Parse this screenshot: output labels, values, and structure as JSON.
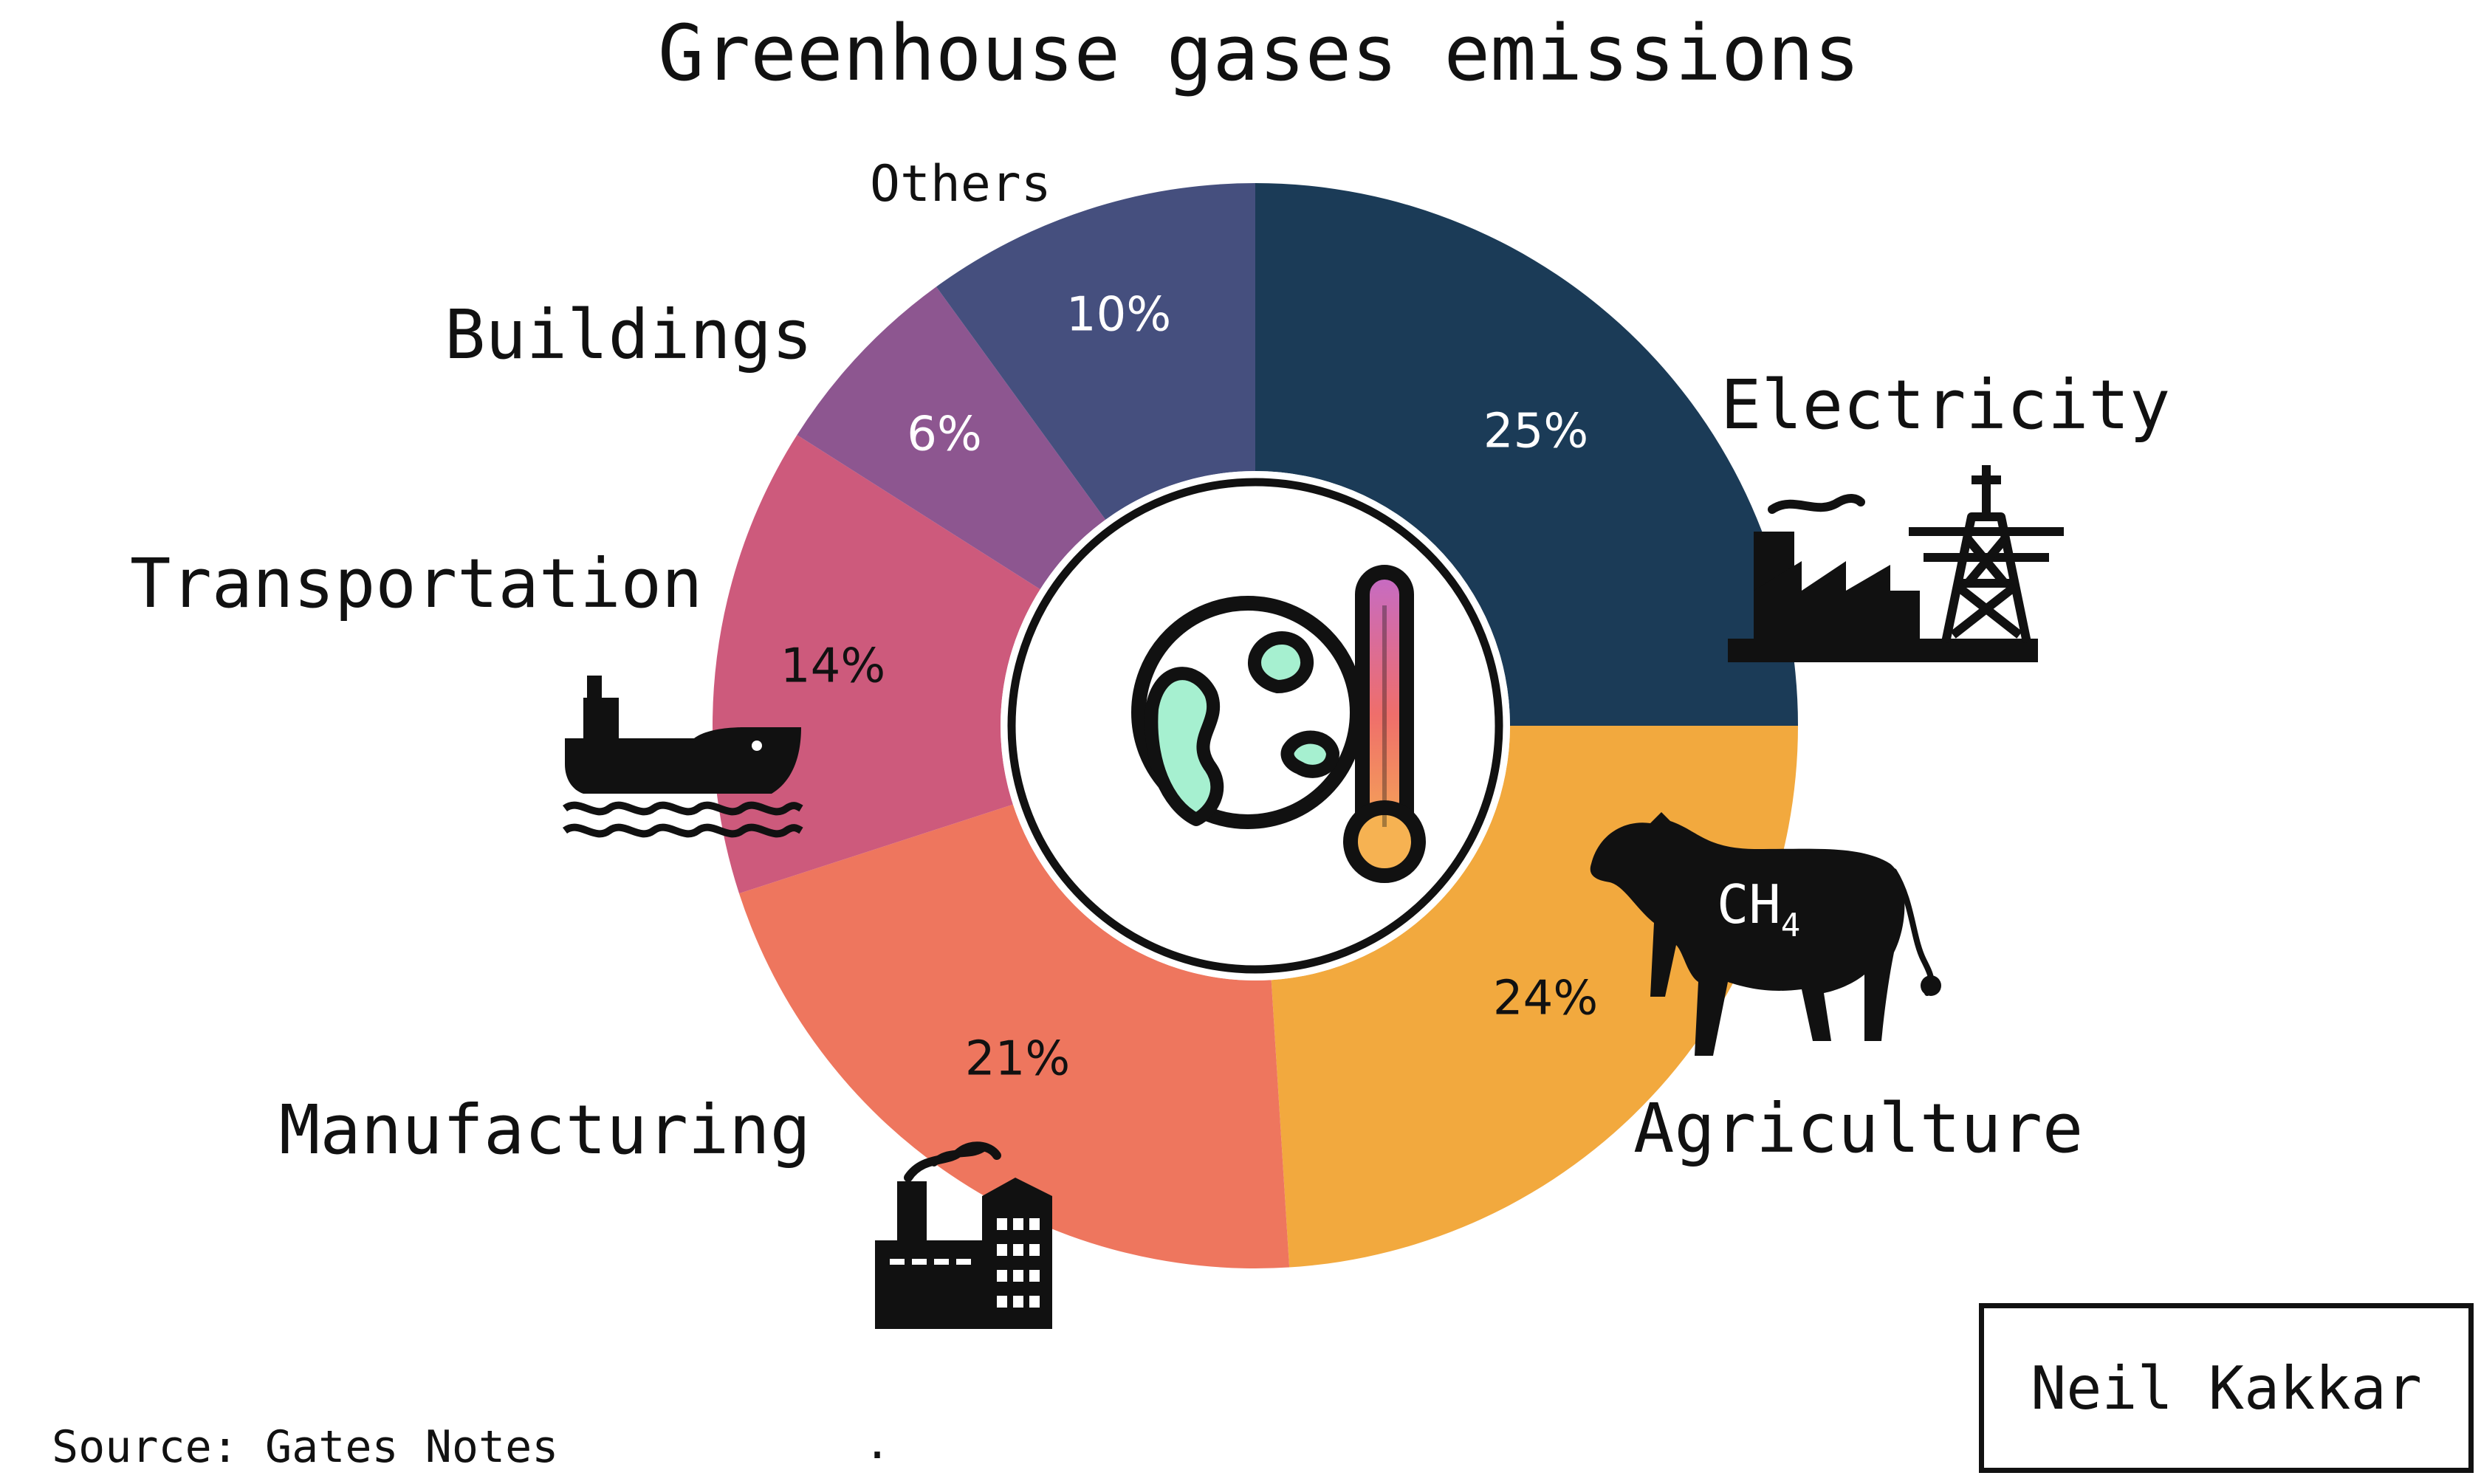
{
  "chart_data": {
    "type": "pie",
    "variant": "donut",
    "title": "Greenhouse gases emissions",
    "slices": [
      {
        "label": "Electricity",
        "value": 25,
        "value_label": "25%",
        "color": "#1b3b57",
        "text_color": "#ffffff"
      },
      {
        "label": "Agriculture",
        "value": 24,
        "value_label": "24%",
        "color": "#f2a93e",
        "text_color": "#111111"
      },
      {
        "label": "Manufacturing",
        "value": 21,
        "value_label": "21%",
        "color": "#ee765e",
        "text_color": "#111111"
      },
      {
        "label": "Transportation",
        "value": 14,
        "value_label": "14%",
        "color": "#cd5a7c",
        "text_color": "#111111"
      },
      {
        "label": "Buildings",
        "value": 6,
        "value_label": "6%",
        "color": "#8d5690",
        "text_color": "#ffffff"
      },
      {
        "label": "Others",
        "value": 10,
        "value_label": "10%",
        "color": "#454f7e",
        "text_color": "#ffffff"
      }
    ],
    "annotations": {
      "agriculture_gas_main": "CH",
      "agriculture_gas_sub": "4"
    },
    "center_icon": "earth-thermometer-icon",
    "category_icons": {
      "Electricity": "factory-power-tower-icon",
      "Agriculture": "cow-icon",
      "Manufacturing": "factory-icon",
      "Transportation": "ship-icon"
    }
  },
  "source": "Source: Gates Notes",
  "footnote_mark": ".",
  "credit": "Neil Kakkar"
}
